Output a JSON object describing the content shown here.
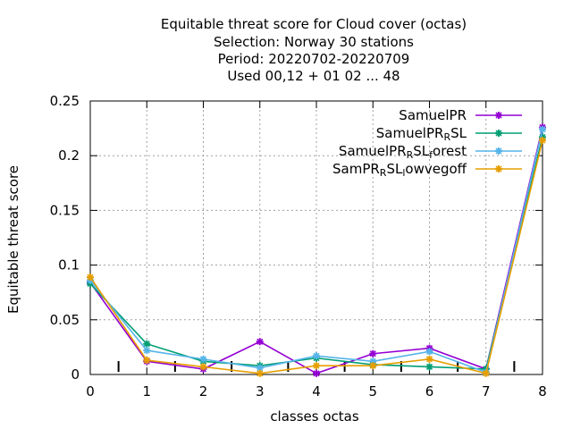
{
  "title_lines": [
    "Equitable threat score  for Cloud cover (octas)",
    "Selection: Norway     30 stations",
    "Period: 20220702-20220709",
    "Used  00,12  + 01 02 ... 48"
  ],
  "colors": {
    "SamuelPR": "#9400d3",
    "SamuelPR_RSL": "#009e73",
    "SamuelPR_RSL_forest": "#56b4e9",
    "SamPR_RSL_lowvegoff": "#e69f00"
  },
  "chart_data": {
    "type": "line",
    "xlabel": "classes octas",
    "ylabel": "Equitable threat score",
    "xlim": [
      0,
      8
    ],
    "ylim": [
      0,
      0.25
    ],
    "x_ticks": [
      0,
      1,
      2,
      3,
      4,
      5,
      6,
      7,
      8
    ],
    "y_ticks": [
      0,
      0.05,
      0.1,
      0.15,
      0.2,
      0.25
    ],
    "y_tick_labels": [
      "0",
      "0.05",
      "0.1",
      "0.15",
      "0.2",
      "0.25"
    ],
    "x": [
      0,
      1,
      2,
      3,
      4,
      5,
      6,
      7,
      8
    ],
    "grid": true,
    "legend_position": "top-right",
    "series": [
      {
        "key": "SamuelPR",
        "name_parts": [
          [
            "SamuelPR",
            ""
          ]
        ],
        "values": [
          0.084,
          0.012,
          0.005,
          0.03,
          0.001,
          0.019,
          0.024,
          0.005,
          0.226
        ]
      },
      {
        "key": "SamuelPR_RSL",
        "name_parts": [
          [
            "SamuelPR",
            ""
          ],
          [
            "R",
            "sub"
          ],
          [
            "SL",
            ""
          ]
        ],
        "values": [
          0.083,
          0.028,
          0.012,
          0.008,
          0.015,
          0.009,
          0.007,
          0.005,
          0.217
        ]
      },
      {
        "key": "SamuelPR_RSL_forest",
        "name_parts": [
          [
            "SamuelPR",
            ""
          ],
          [
            "R",
            "sub"
          ],
          [
            "SL",
            ""
          ],
          [
            "f",
            "sub"
          ],
          [
            "orest",
            ""
          ]
        ],
        "values": [
          0.086,
          0.022,
          0.014,
          0.006,
          0.017,
          0.012,
          0.021,
          0.002,
          0.224
        ]
      },
      {
        "key": "SamPR_RSL_lowvegoff",
        "name_parts": [
          [
            "SamPR",
            ""
          ],
          [
            "R",
            "sub"
          ],
          [
            "SL",
            ""
          ],
          [
            "l",
            "sub"
          ],
          [
            "owvegoff",
            ""
          ]
        ],
        "values": [
          0.089,
          0.013,
          0.007,
          0.001,
          0.008,
          0.008,
          0.014,
          0.001,
          0.214
        ]
      }
    ],
    "small_ticks_x": [
      0.5,
      1.5,
      2.5,
      3.5,
      4.5,
      5.5,
      6.5,
      7.5
    ]
  }
}
